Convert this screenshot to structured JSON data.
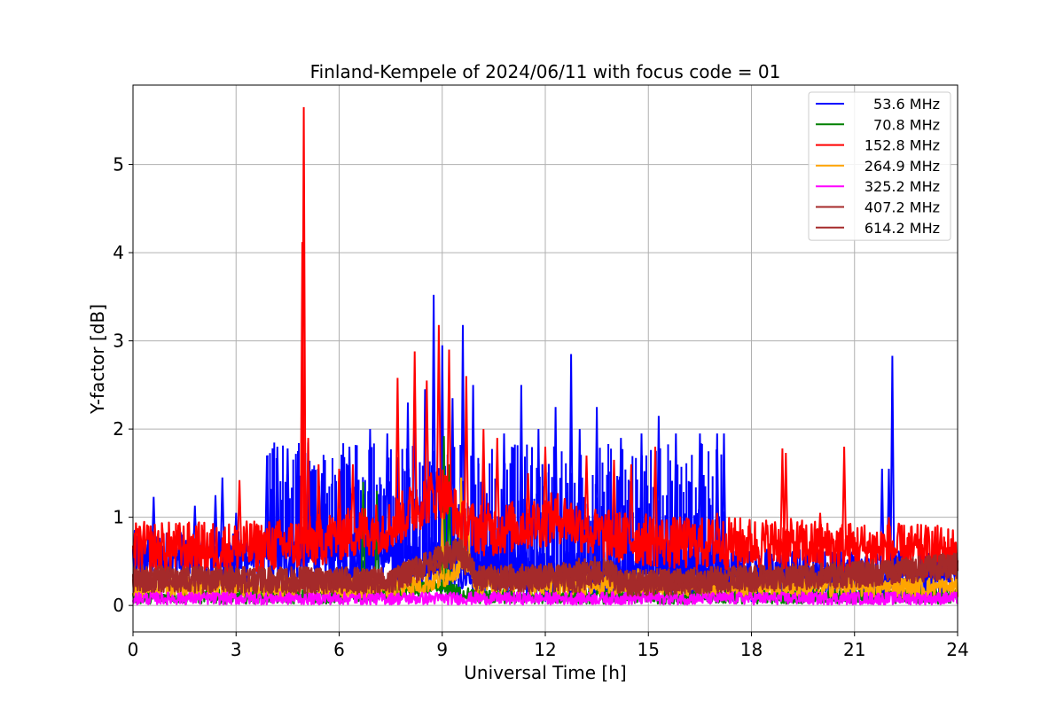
{
  "chart_data": {
    "type": "line",
    "title": "Finland-Kempele of 2024/06/11 with focus code = 01",
    "xlabel": "Universal Time [h]",
    "ylabel": "Y-factor [dB]",
    "xlim": [
      0,
      24
    ],
    "ylim": [
      -0.3,
      5.9
    ],
    "xticks": [
      0,
      3,
      6,
      9,
      12,
      15,
      18,
      21,
      24
    ],
    "yticks": [
      0,
      1,
      2,
      3,
      4,
      5
    ],
    "grid": true,
    "legend_position": "top-right",
    "series": [
      {
        "name": "53.6 MHz",
        "color": "#0000ff",
        "baseline": [
          [
            0,
            0.55
          ],
          [
            3,
            0.55
          ],
          [
            6,
            0.55
          ],
          [
            7.5,
            0.55
          ],
          [
            8.5,
            0.5
          ],
          [
            9.5,
            0.4
          ],
          [
            12,
            0.35
          ],
          [
            15,
            0.35
          ],
          [
            18,
            0.35
          ],
          [
            21,
            0.35
          ],
          [
            24,
            0.35
          ]
        ],
        "band": 0.3,
        "spikes": [
          [
            0.6,
            1.23
          ],
          [
            1.8,
            1.13
          ],
          [
            2.4,
            1.25
          ],
          [
            2.6,
            1.45
          ],
          [
            3.0,
            1.05
          ],
          [
            3.9,
            1.7
          ],
          [
            4.2,
            1.8
          ],
          [
            4.5,
            1.78
          ],
          [
            4.8,
            1.75
          ],
          [
            5.5,
            1.5
          ],
          [
            6.3,
            1.8
          ],
          [
            6.9,
            2.0
          ],
          [
            7.4,
            1.95
          ],
          [
            8.0,
            2.3
          ],
          [
            8.2,
            2.63
          ],
          [
            8.5,
            2.45
          ],
          [
            8.75,
            3.52
          ],
          [
            9.0,
            2.95
          ],
          [
            9.3,
            2.35
          ],
          [
            9.6,
            3.18
          ],
          [
            9.9,
            2.5
          ],
          [
            10.2,
            1.75
          ],
          [
            10.8,
            1.95
          ],
          [
            11.3,
            2.5
          ],
          [
            11.8,
            2.0
          ],
          [
            12.3,
            2.25
          ],
          [
            12.75,
            2.85
          ],
          [
            13.0,
            2.0
          ],
          [
            13.5,
            2.25
          ],
          [
            14.2,
            1.9
          ],
          [
            14.8,
            1.95
          ],
          [
            15.3,
            2.15
          ],
          [
            15.8,
            1.95
          ],
          [
            16.5,
            1.95
          ],
          [
            17.0,
            1.95
          ],
          [
            17.2,
            1.95
          ],
          [
            21.8,
            1.55
          ],
          [
            22.0,
            1.55
          ],
          [
            22.1,
            2.83
          ]
        ],
        "dense": [
          [
            3.9,
            17.2,
            1.85
          ]
        ]
      },
      {
        "name": "70.8 MHz",
        "color": "#008000",
        "baseline": [
          [
            0,
            0.1
          ],
          [
            6,
            0.1
          ],
          [
            9,
            0.2
          ],
          [
            10,
            0.1
          ],
          [
            24,
            0.1
          ]
        ],
        "band": 0.08,
        "spikes": [
          [
            6.7,
            1.4
          ],
          [
            7.1,
            1.3
          ],
          [
            9.05,
            1.92
          ],
          [
            9.2,
            1.6
          ]
        ],
        "dense": []
      },
      {
        "name": "152.8 MHz",
        "color": "#ff0000",
        "baseline": [
          [
            0,
            0.65
          ],
          [
            3,
            0.65
          ],
          [
            5,
            0.7
          ],
          [
            6,
            0.8
          ],
          [
            7.5,
            0.9
          ],
          [
            8.5,
            1.2
          ],
          [
            9.0,
            1.3
          ],
          [
            9.6,
            0.9
          ],
          [
            10.5,
            0.85
          ],
          [
            12.5,
            1.0
          ],
          [
            13.5,
            0.8
          ],
          [
            16,
            0.7
          ],
          [
            18,
            0.7
          ],
          [
            21,
            0.65
          ],
          [
            24,
            0.6
          ]
        ],
        "band": 0.3,
        "spikes": [
          [
            0.2,
            0.9
          ],
          [
            3.1,
            1.42
          ],
          [
            4.93,
            4.12
          ],
          [
            4.97,
            5.65
          ],
          [
            5.1,
            1.9
          ],
          [
            5.4,
            1.6
          ],
          [
            6.0,
            1.55
          ],
          [
            6.4,
            1.6
          ],
          [
            7.7,
            2.58
          ],
          [
            8.2,
            2.88
          ],
          [
            8.55,
            2.55
          ],
          [
            8.9,
            3.18
          ],
          [
            9.2,
            2.9
          ],
          [
            9.7,
            2.6
          ],
          [
            10.2,
            2.0
          ],
          [
            10.6,
            1.9
          ],
          [
            11.5,
            1.5
          ],
          [
            12.0,
            1.8
          ],
          [
            13.2,
            1.7
          ],
          [
            14.0,
            1.65
          ],
          [
            14.5,
            1.6
          ],
          [
            15.2,
            1.8
          ],
          [
            17.0,
            1.05
          ],
          [
            18.9,
            1.78
          ],
          [
            19.0,
            1.73
          ],
          [
            20.0,
            1.05
          ],
          [
            20.7,
            1.8
          ],
          [
            22.0,
            1.0
          ]
        ],
        "dense": []
      },
      {
        "name": "264.9 MHz",
        "color": "#ffa500",
        "baseline": [
          [
            0,
            0.2
          ],
          [
            7.5,
            0.2
          ],
          [
            8.5,
            0.25
          ],
          [
            9.0,
            0.3
          ],
          [
            9.7,
            0.5
          ],
          [
            10,
            0.25
          ],
          [
            24,
            0.2
          ]
        ],
        "band": 0.12,
        "spikes": [
          [
            9.0,
            1.05
          ],
          [
            9.55,
            1.45
          ],
          [
            9.75,
            1.1
          ],
          [
            14.7,
            0.42
          ]
        ],
        "dense": []
      },
      {
        "name": "325.2 MHz",
        "color": "#ff00ff",
        "baseline": [
          [
            0,
            0.08
          ],
          [
            24,
            0.08
          ]
        ],
        "band": 0.07,
        "spikes": [],
        "dense": []
      },
      {
        "name": "407.2 MHz",
        "color": "#a52a2a",
        "baseline": [
          [
            0,
            0.3
          ],
          [
            7.5,
            0.28
          ],
          [
            8.5,
            0.45
          ],
          [
            9.5,
            0.6
          ],
          [
            10,
            0.3
          ],
          [
            13,
            0.3
          ],
          [
            13.8,
            0.4
          ],
          [
            14.2,
            0.25
          ],
          [
            21,
            0.35
          ],
          [
            24,
            0.45
          ]
        ],
        "band": 0.15,
        "spikes": [],
        "dense": []
      },
      {
        "name": "614.2 MHz",
        "color": "#a52a2a",
        "baseline": [
          [
            0,
            0.3
          ],
          [
            7.5,
            0.28
          ],
          [
            8.5,
            0.45
          ],
          [
            9.5,
            0.65
          ],
          [
            10,
            0.3
          ],
          [
            12.5,
            0.35
          ],
          [
            13,
            0.4
          ],
          [
            13.8,
            0.4
          ],
          [
            14.2,
            0.25
          ],
          [
            21,
            0.35
          ],
          [
            24,
            0.45
          ]
        ],
        "band": 0.15,
        "spikes": [],
        "dense": []
      }
    ]
  }
}
